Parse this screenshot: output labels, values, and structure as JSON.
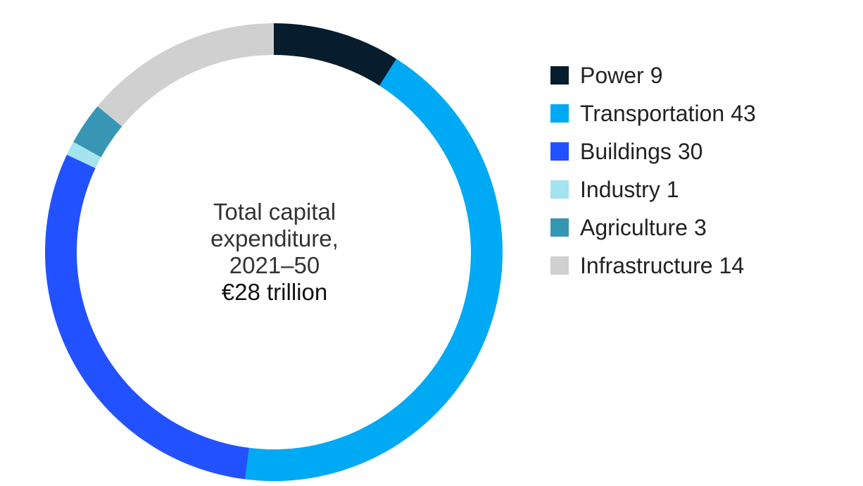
{
  "chart_data": {
    "type": "pie",
    "categories": [
      "Power",
      "Transportation",
      "Buildings",
      "Industry",
      "Agriculture",
      "Infrastructure"
    ],
    "values": [
      9,
      43,
      30,
      1,
      3,
      14
    ],
    "colors": [
      "#071c2c",
      "#00a9f4",
      "#2251ff",
      "#a4e3f0",
      "#3796b4",
      "#d0d0d0"
    ],
    "center_text": [
      "Total capital",
      "expenditure,",
      "2021–50"
    ],
    "center_total": "€28 trillion",
    "legend_position": "right",
    "donut": true
  }
}
